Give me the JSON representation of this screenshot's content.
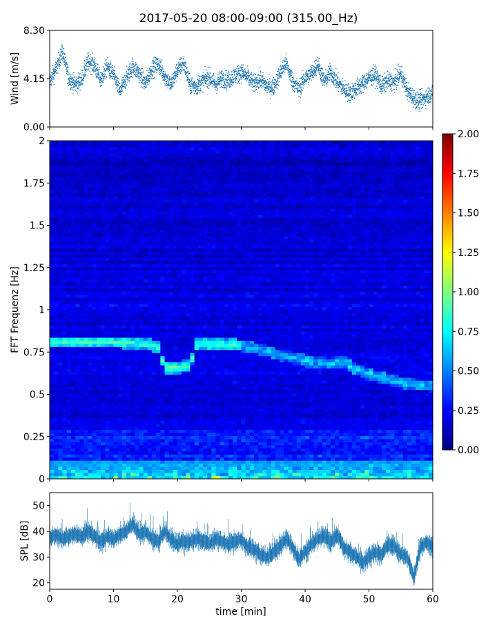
{
  "title": "2017-05-20 08:00-09:00 (315.00_Hz)",
  "colors": {
    "series": "#1f77b4",
    "axis": "#000000",
    "colormap": [
      "#00007f",
      "#0000ff",
      "#007fff",
      "#00ffff",
      "#7fff7f",
      "#ffff00",
      "#ff7f00",
      "#ff0000",
      "#7f0000"
    ]
  },
  "chart_data": [
    {
      "id": "wind",
      "type": "scatter",
      "ylabel": "Wind [m/s]",
      "xlim": [
        0,
        60
      ],
      "ylim": [
        0,
        8.3
      ],
      "yticks": [
        0,
        4.15,
        8.3
      ],
      "ytick_labels": [
        "0.00",
        "4.15",
        "8.30"
      ],
      "xticks": [
        0,
        10,
        20,
        30,
        40,
        50,
        60
      ],
      "x_tick_labels_shown": false,
      "point_count": 3600,
      "trend": [
        [
          0,
          3.9
        ],
        [
          1,
          5.0
        ],
        [
          2,
          6.5
        ],
        [
          3,
          4.2
        ],
        [
          4,
          3.6
        ],
        [
          5,
          4.1
        ],
        [
          6,
          5.6
        ],
        [
          7,
          5.3
        ],
        [
          8,
          4.0
        ],
        [
          9,
          5.2
        ],
        [
          10,
          4.5
        ],
        [
          11,
          3.0
        ],
        [
          12,
          4.2
        ],
        [
          13,
          5.2
        ],
        [
          14,
          4.6
        ],
        [
          15,
          3.7
        ],
        [
          16,
          5.0
        ],
        [
          17,
          5.4
        ],
        [
          18,
          4.4
        ],
        [
          19,
          3.6
        ],
        [
          20,
          4.9
        ],
        [
          21,
          5.5
        ],
        [
          22,
          3.6
        ],
        [
          23,
          3.5
        ],
        [
          24,
          4.0
        ],
        [
          25,
          4.3
        ],
        [
          26,
          3.6
        ],
        [
          27,
          4.2
        ],
        [
          28,
          4.0
        ],
        [
          29,
          4.4
        ],
        [
          30,
          4.7
        ],
        [
          31,
          4.3
        ],
        [
          32,
          3.7
        ],
        [
          33,
          4.1
        ],
        [
          34,
          3.5
        ],
        [
          35,
          3.4
        ],
        [
          36,
          4.5
        ],
        [
          37,
          5.5
        ],
        [
          38,
          4.0
        ],
        [
          39,
          3.2
        ],
        [
          40,
          4.2
        ],
        [
          41,
          4.6
        ],
        [
          42,
          5.4
        ],
        [
          43,
          3.9
        ],
        [
          44,
          4.7
        ],
        [
          45,
          3.9
        ],
        [
          46,
          3.3
        ],
        [
          47,
          2.9
        ],
        [
          48,
          3.3
        ],
        [
          49,
          3.7
        ],
        [
          50,
          4.2
        ],
        [
          51,
          4.5
        ],
        [
          52,
          3.5
        ],
        [
          53,
          4.0
        ],
        [
          54,
          3.8
        ],
        [
          55,
          4.6
        ],
        [
          56,
          3.1
        ],
        [
          57,
          2.5
        ],
        [
          58,
          2.2
        ],
        [
          59,
          2.6
        ],
        [
          60,
          3.0
        ]
      ]
    },
    {
      "id": "spectrogram",
      "type": "heatmap",
      "ylabel": "FFT Frequenz [Hz]",
      "xlim": [
        0,
        60
      ],
      "ylim": [
        0,
        2
      ],
      "yticks": [
        0,
        0.25,
        0.5,
        0.75,
        1,
        1.25,
        1.5,
        1.75,
        2
      ],
      "ytick_labels": [
        "0",
        "0.25",
        "0.5",
        "0.75",
        "1",
        "1.25",
        "1.5",
        "1.75",
        "2"
      ],
      "xticks": [
        0,
        10,
        20,
        30,
        40,
        50,
        60
      ],
      "x_tick_labels_shown": false,
      "background_level": 0.2,
      "ridge": [
        [
          0,
          0.81
        ],
        [
          5,
          0.81
        ],
        [
          10,
          0.81
        ],
        [
          15,
          0.8
        ],
        [
          17,
          0.78
        ],
        [
          18,
          0.66
        ],
        [
          20,
          0.66
        ],
        [
          22,
          0.67
        ],
        [
          23,
          0.8
        ],
        [
          27,
          0.8
        ],
        [
          30,
          0.79
        ],
        [
          34,
          0.76
        ],
        [
          36,
          0.73
        ],
        [
          38,
          0.72
        ],
        [
          40,
          0.7
        ],
        [
          44,
          0.68
        ],
        [
          46,
          0.7
        ],
        [
          48,
          0.65
        ],
        [
          50,
          0.62
        ],
        [
          52,
          0.6
        ],
        [
          54,
          0.58
        ],
        [
          57,
          0.56
        ],
        [
          60,
          0.55
        ]
      ],
      "low_frequency_band": [
        0,
        0.1
      ],
      "colorbar": {
        "range": [
          0,
          2
        ],
        "ticks": [
          0,
          0.25,
          0.5,
          0.75,
          1,
          1.25,
          1.5,
          1.75,
          2
        ],
        "tick_labels": [
          "0.00",
          "0.25",
          "0.50",
          "0.75",
          "1.00",
          "1.25",
          "1.50",
          "1.75",
          "2.00"
        ]
      }
    },
    {
      "id": "spl",
      "type": "line",
      "ylabel": "SPL [dB]",
      "xlabel": "time [min]",
      "xlim": [
        0,
        60
      ],
      "ylim": [
        17.5,
        55
      ],
      "yticks": [
        20,
        30,
        40,
        50
      ],
      "ytick_labels": [
        "20",
        "30",
        "40",
        "50"
      ],
      "xticks": [
        0,
        10,
        20,
        30,
        40,
        50,
        60
      ],
      "xtick_labels": [
        "0",
        "10",
        "20",
        "30",
        "40",
        "50",
        "60"
      ],
      "trend": [
        [
          0,
          37
        ],
        [
          1,
          39
        ],
        [
          2,
          37
        ],
        [
          3,
          38
        ],
        [
          4,
          39
        ],
        [
          5,
          38
        ],
        [
          6,
          40
        ],
        [
          7,
          38
        ],
        [
          8,
          36
        ],
        [
          9,
          38
        ],
        [
          10,
          37
        ],
        [
          11,
          39
        ],
        [
          12,
          40
        ],
        [
          13,
          43
        ],
        [
          14,
          39
        ],
        [
          15,
          40
        ],
        [
          16,
          37
        ],
        [
          17,
          36
        ],
        [
          18,
          40
        ],
        [
          19,
          37
        ],
        [
          20,
          35
        ],
        [
          21,
          36
        ],
        [
          22,
          36
        ],
        [
          23,
          37
        ],
        [
          24,
          36
        ],
        [
          25,
          35
        ],
        [
          26,
          37
        ],
        [
          27,
          36
        ],
        [
          28,
          35
        ],
        [
          29,
          36
        ],
        [
          30,
          37
        ],
        [
          31,
          34
        ],
        [
          32,
          33
        ],
        [
          33,
          31
        ],
        [
          34,
          30
        ],
        [
          35,
          32
        ],
        [
          36,
          34
        ],
        [
          37,
          37
        ],
        [
          38,
          34
        ],
        [
          39,
          29
        ],
        [
          40,
          32
        ],
        [
          41,
          35
        ],
        [
          42,
          37
        ],
        [
          43,
          38
        ],
        [
          44,
          36
        ],
        [
          45,
          39
        ],
        [
          46,
          34
        ],
        [
          47,
          32
        ],
        [
          48,
          30
        ],
        [
          49,
          28
        ],
        [
          50,
          30
        ],
        [
          51,
          32
        ],
        [
          52,
          31
        ],
        [
          53,
          35
        ],
        [
          54,
          34
        ],
        [
          55,
          31
        ],
        [
          56,
          30
        ],
        [
          57,
          22
        ],
        [
          58,
          33
        ],
        [
          59,
          36
        ],
        [
          60,
          34
        ]
      ]
    }
  ]
}
